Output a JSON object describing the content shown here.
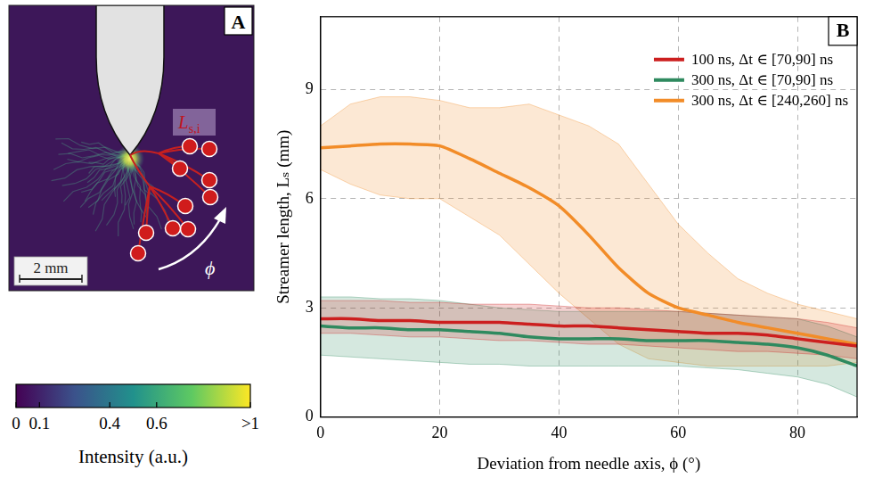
{
  "chart_data": {
    "type": "line",
    "panel_label": "B",
    "xlabel": "Deviation from needle axis, ϕ (°)",
    "ylabel": "Streamer length, Lₛ (mm)",
    "x": [
      0,
      5,
      10,
      15,
      20,
      25,
      30,
      35,
      40,
      45,
      50,
      55,
      60,
      65,
      70,
      75,
      80,
      85,
      90
    ],
    "series": [
      {
        "name": "100 ns, Δt ∈ [70,90] ns",
        "color": "#cc1f1f",
        "values": [
          2.7,
          2.7,
          2.65,
          2.65,
          2.6,
          2.6,
          2.6,
          2.55,
          2.5,
          2.5,
          2.45,
          2.4,
          2.35,
          2.3,
          2.3,
          2.25,
          2.15,
          2.05,
          1.95
        ],
        "lower": [
          2.3,
          2.3,
          2.25,
          2.2,
          2.2,
          2.15,
          2.1,
          2.1,
          2.05,
          2.0,
          2.0,
          1.95,
          1.9,
          1.85,
          1.8,
          1.8,
          1.75,
          1.7,
          1.6
        ],
        "upper": [
          3.2,
          3.2,
          3.2,
          3.15,
          3.15,
          3.1,
          3.1,
          3.1,
          3.05,
          3.0,
          3.0,
          2.95,
          2.9,
          2.85,
          2.8,
          2.75,
          2.7,
          2.6,
          2.45
        ]
      },
      {
        "name": "300 ns, Δt ∈ [70,90] ns",
        "color": "#2f8a5f",
        "values": [
          2.5,
          2.45,
          2.45,
          2.4,
          2.4,
          2.35,
          2.3,
          2.2,
          2.15,
          2.15,
          2.15,
          2.1,
          2.1,
          2.1,
          2.05,
          2.0,
          1.9,
          1.7,
          1.4
        ],
        "lower": [
          1.7,
          1.65,
          1.6,
          1.55,
          1.5,
          1.45,
          1.45,
          1.4,
          1.4,
          1.4,
          1.4,
          1.4,
          1.4,
          1.35,
          1.3,
          1.2,
          1.1,
          0.9,
          0.55
        ],
        "upper": [
          3.3,
          3.3,
          3.25,
          3.25,
          3.2,
          3.1,
          3.0,
          2.95,
          2.9,
          2.9,
          2.9,
          2.9,
          2.9,
          2.85,
          2.8,
          2.75,
          2.7,
          2.5,
          2.2
        ]
      },
      {
        "name": "300 ns, Δt ∈ [240,260] ns",
        "color": "#f28c28",
        "values": [
          7.4,
          7.45,
          7.5,
          7.5,
          7.45,
          7.1,
          6.7,
          6.3,
          5.8,
          5.0,
          4.1,
          3.4,
          3.0,
          2.8,
          2.6,
          2.45,
          2.3,
          2.15,
          2.0
        ],
        "lower": [
          6.8,
          6.4,
          6.1,
          6.0,
          6.0,
          5.5,
          5.0,
          4.2,
          3.4,
          2.7,
          2.0,
          1.6,
          1.5,
          1.4,
          1.4,
          1.4,
          1.4,
          1.4,
          1.5
        ],
        "upper": [
          8.0,
          8.6,
          8.8,
          8.8,
          8.7,
          8.5,
          8.5,
          8.6,
          8.3,
          8.0,
          7.5,
          6.4,
          5.3,
          4.5,
          3.8,
          3.4,
          3.1,
          2.9,
          2.7
        ]
      }
    ],
    "xlim": [
      0,
      90
    ],
    "xticks": [
      0,
      20,
      40,
      60,
      80
    ],
    "ylim": [
      0,
      11
    ],
    "yticks": [
      0,
      3,
      6,
      9
    ],
    "grid": true,
    "legend": "upper right"
  },
  "panel_a": {
    "panel_label": "A",
    "annotation": "L",
    "annotation_subscript": "s,i",
    "angle_label": "ϕ",
    "scale_bar": "2 mm",
    "colorbar": {
      "title": "Intensity (a.u.)",
      "range": [
        0,
        1
      ],
      "ticks": [
        0,
        0.1,
        0.4,
        0.6,
        {
          "value": 1,
          "label": ">1"
        }
      ]
    }
  }
}
